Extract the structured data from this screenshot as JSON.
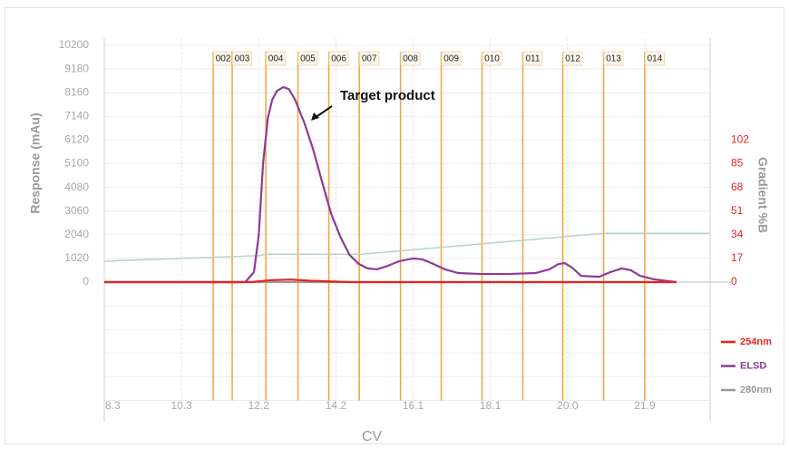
{
  "chart_data": {
    "type": "line",
    "annotation": "Target product",
    "xlabel": "CV",
    "ylabel": "Response (mAu)",
    "y2label": "Gradient %B",
    "xlim": [
      8.3,
      23.6
    ],
    "xticks": [
      {
        "value": 8.3,
        "label": "8.3"
      },
      {
        "value": 10.25,
        "label": "10.3"
      },
      {
        "value": 12.2,
        "label": "12.2"
      },
      {
        "value": 14.15,
        "label": "14.2"
      },
      {
        "value": 16.1,
        "label": "16.1"
      },
      {
        "value": 18.05,
        "label": "18.1"
      },
      {
        "value": 20.0,
        "label": "20.0"
      },
      {
        "value": 21.95,
        "label": "21.9"
      }
    ],
    "ylim": [
      -5100,
      10200
    ],
    "yticks": [
      0,
      1020,
      2040,
      3060,
      4080,
      5100,
      6120,
      7140,
      8160,
      9180,
      10200
    ],
    "y2lim": [
      -85,
      170
    ],
    "y2ticks": [
      0,
      17,
      34,
      51,
      68,
      85,
      102
    ],
    "grid": true,
    "legend": "lower right",
    "fractions": [
      {
        "label": "002",
        "x": 11.05
      },
      {
        "label": "003",
        "x": 11.53
      },
      {
        "label": "004",
        "x": 12.38
      },
      {
        "label": "005",
        "x": 13.19
      },
      {
        "label": "006",
        "x": 13.97
      },
      {
        "label": "007",
        "x": 14.74
      },
      {
        "label": "008",
        "x": 15.78
      },
      {
        "label": "009",
        "x": 16.81
      },
      {
        "label": "010",
        "x": 17.84
      },
      {
        "label": "011",
        "x": 18.87
      },
      {
        "label": "012",
        "x": 19.88
      },
      {
        "label": "013",
        "x": 20.91
      },
      {
        "label": "014",
        "x": 21.95
      }
    ],
    "fraction_color": "#f2a33a",
    "series": [
      {
        "color": "#b8d3c6",
        "axis": "y2",
        "x": [
          8.3,
          12.2,
          12.4,
          14.8,
          20.9,
          23.6
        ],
        "values": [
          15,
          19,
          20,
          20,
          35,
          35
        ]
      },
      {
        "name": "280nm",
        "color": "#999999",
        "x": [
          8.3,
          22.75
        ],
        "values": [
          0,
          0
        ]
      },
      {
        "name": "ELSD",
        "color": "#8e3a9a",
        "x": [
          8.3,
          11.86,
          12.08,
          12.2,
          12.31,
          12.43,
          12.54,
          12.66,
          12.82,
          12.96,
          13.12,
          13.35,
          13.58,
          13.8,
          14.03,
          14.26,
          14.49,
          14.72,
          14.95,
          15.18,
          15.41,
          15.75,
          16.1,
          16.33,
          16.56,
          16.9,
          17.24,
          17.82,
          18.51,
          19.19,
          19.54,
          19.77,
          19.93,
          20.11,
          20.34,
          20.8,
          21.08,
          21.37,
          21.6,
          21.83,
          22.18,
          22.75
        ],
        "values": [
          0,
          0,
          430,
          2000,
          5100,
          7060,
          7850,
          8240,
          8400,
          8320,
          7850,
          6870,
          5690,
          4320,
          2940,
          1960,
          1180,
          790,
          590,
          550,
          670,
          900,
          1020,
          980,
          820,
          550,
          390,
          350,
          350,
          390,
          550,
          780,
          820,
          630,
          270,
          230,
          430,
          590,
          510,
          270,
          120,
          0
        ]
      },
      {
        "name": "254nm",
        "color": "#e0261f",
        "x": [
          8.3,
          12.0,
          12.5,
          13.0,
          13.5,
          14.5,
          22.75
        ],
        "values": [
          0,
          0,
          80,
          110,
          60,
          0,
          0
        ]
      }
    ]
  }
}
